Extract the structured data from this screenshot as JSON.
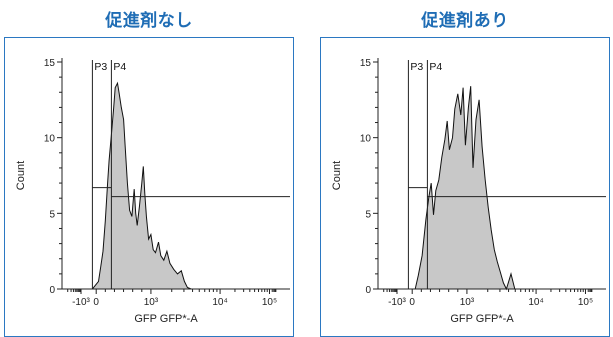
{
  "chart_data": [
    {
      "type": "area",
      "panel_title": "促進剤なし",
      "xlabel": "GFP GFP*-A",
      "ylabel": "Count",
      "ylim": [
        0,
        15
      ],
      "y_ticks": [
        0,
        5,
        10,
        15
      ],
      "x_scale": "biexponential",
      "x_ticks": [
        "-10³",
        "0",
        "10³",
        "10⁴",
        "10⁵"
      ],
      "grid": false,
      "fill_color": "#c8c8c8",
      "gates": [
        {
          "name": "P3",
          "x_min": "-10³",
          "x_max": "0",
          "count_level": 6.7
        },
        {
          "name": "P4",
          "x_min": "0",
          "x_max": "10⁵",
          "count_level": 6.1
        }
      ],
      "series": [
        {
          "values": [
            [
              -0.2,
              0
            ],
            [
              -0.05,
              0
            ],
            [
              0.03,
              0.5
            ],
            [
              0.06,
              1.5
            ],
            [
              0.09,
              2.5
            ],
            [
              0.12,
              4.5
            ],
            [
              0.15,
              7.0
            ],
            [
              0.17,
              8.5
            ],
            [
              0.2,
              10.2
            ],
            [
              0.23,
              12.0
            ],
            [
              0.25,
              13.3
            ],
            [
              0.28,
              13.6
            ],
            [
              0.3,
              13.0
            ],
            [
              0.33,
              12.0
            ],
            [
              0.36,
              11.2
            ],
            [
              0.38,
              9.5
            ],
            [
              0.41,
              7.0
            ],
            [
              0.44,
              5.2
            ],
            [
              0.47,
              4.8
            ],
            [
              0.5,
              6.6
            ],
            [
              0.52,
              5.0
            ],
            [
              0.54,
              4.2
            ],
            [
              0.57,
              5.5
            ],
            [
              0.6,
              7.0
            ],
            [
              0.62,
              8.1
            ],
            [
              0.64,
              6.3
            ],
            [
              0.66,
              4.8
            ],
            [
              0.69,
              3.3
            ],
            [
              0.72,
              3.6
            ],
            [
              0.75,
              2.6
            ],
            [
              0.78,
              2.4
            ],
            [
              0.82,
              3.1
            ],
            [
              0.85,
              2.2
            ],
            [
              0.89,
              1.9
            ],
            [
              0.93,
              2.5
            ],
            [
              0.97,
              1.7
            ],
            [
              1.02,
              1.3
            ],
            [
              1.07,
              1.0
            ],
            [
              1.12,
              1.2
            ],
            [
              1.16,
              0.5
            ],
            [
              1.2,
              0.1
            ],
            [
              1.25,
              0
            ],
            [
              2.55,
              0
            ]
          ]
        }
      ]
    },
    {
      "type": "area",
      "panel_title": "促進剤あり",
      "xlabel": "GFP GFP*-A",
      "ylabel": "Count",
      "ylim": [
        0,
        15
      ],
      "y_ticks": [
        0,
        5,
        10,
        15
      ],
      "x_scale": "biexponential",
      "x_ticks": [
        "-10³",
        "0",
        "10³",
        "10⁴",
        "10⁵"
      ],
      "grid": false,
      "fill_color": "#c8c8c8",
      "gates": [
        {
          "name": "P3",
          "x_min": "-10³",
          "x_max": "0",
          "count_level": 6.7
        },
        {
          "name": "P4",
          "x_min": "0",
          "x_max": "10⁵",
          "count_level": 6.1
        }
      ],
      "series": [
        {
          "values": [
            [
              -0.2,
              0
            ],
            [
              0.04,
              0
            ],
            [
              0.08,
              0.9
            ],
            [
              0.13,
              2.2
            ],
            [
              0.18,
              4.6
            ],
            [
              0.22,
              6.1
            ],
            [
              0.25,
              7.0
            ],
            [
              0.28,
              4.9
            ],
            [
              0.31,
              6.5
            ],
            [
              0.35,
              7.2
            ],
            [
              0.39,
              8.7
            ],
            [
              0.43,
              9.9
            ],
            [
              0.46,
              11.1
            ],
            [
              0.49,
              9.2
            ],
            [
              0.53,
              10.0
            ],
            [
              0.56,
              11.9
            ],
            [
              0.6,
              12.9
            ],
            [
              0.64,
              11.5
            ],
            [
              0.67,
              13.3
            ],
            [
              0.7,
              9.5
            ],
            [
              0.74,
              12.0
            ],
            [
              0.77,
              13.4
            ],
            [
              0.8,
              8.0
            ],
            [
              0.84,
              11.2
            ],
            [
              0.88,
              12.5
            ],
            [
              0.92,
              9.4
            ],
            [
              0.96,
              7.2
            ],
            [
              1.0,
              5.4
            ],
            [
              1.04,
              3.9
            ],
            [
              1.08,
              2.6
            ],
            [
              1.12,
              1.8
            ],
            [
              1.16,
              1.1
            ],
            [
              1.2,
              0.4
            ],
            [
              1.24,
              0
            ],
            [
              1.3,
              1.0
            ],
            [
              1.35,
              0
            ],
            [
              2.55,
              0
            ]
          ]
        }
      ]
    }
  ]
}
